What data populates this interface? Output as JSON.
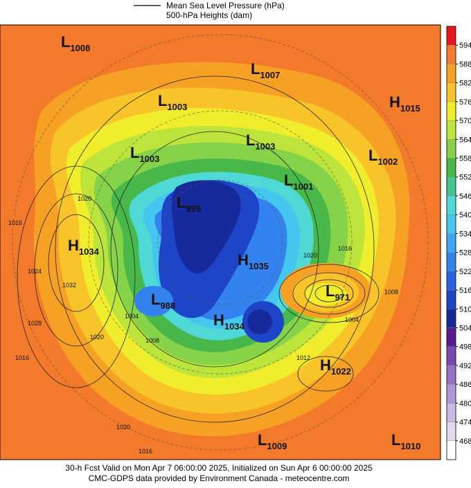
{
  "legend": {
    "line_label": "Mean Sea Level Pressure (hPa)",
    "fill_label": "500-hPa Heights (dam)"
  },
  "colorbar": {
    "levels": [
      468,
      474,
      480,
      486,
      492,
      498,
      504,
      510,
      516,
      522,
      528,
      534,
      540,
      546,
      552,
      558,
      564,
      570,
      576,
      582,
      588,
      594
    ],
    "colors": [
      "#ffffff",
      "#e4d8f0",
      "#cbb8e4",
      "#b096d6",
      "#9672c4",
      "#7a48b0",
      "#5a1a92",
      "#162a9c",
      "#1e44c8",
      "#2a62e4",
      "#3482f0",
      "#3ca6f4",
      "#44c6ee",
      "#4ed8d6",
      "#44c48e",
      "#48b84a",
      "#86d248",
      "#bce43a",
      "#f0ee2c",
      "#f8c42a",
      "#f6a024",
      "#f27a2a",
      "#e8141e"
    ]
  },
  "centers": [
    {
      "letter": "L",
      "value": 1008
    },
    {
      "letter": "L",
      "value": 1007
    },
    {
      "letter": "L",
      "value": 1003
    },
    {
      "letter": "H",
      "value": 1015
    },
    {
      "letter": "L",
      "value": 1003
    },
    {
      "letter": "L",
      "value": 1003
    },
    {
      "letter": "L",
      "value": 1002
    },
    {
      "letter": "L",
      "value": 1001
    },
    {
      "letter": "L",
      "value": 995
    },
    {
      "letter": "H",
      "value": 1034
    },
    {
      "letter": "H",
      "value": 1035
    },
    {
      "letter": "L",
      "value": 971
    },
    {
      "letter": "L",
      "value": 988
    },
    {
      "letter": "H",
      "value": 1034
    },
    {
      "letter": "H",
      "value": 1022
    },
    {
      "letter": "L",
      "value": 1009
    },
    {
      "letter": "L",
      "value": 1010
    }
  ],
  "contour_labels": [
    1020,
    1016,
    1024,
    1032,
    1028,
    1020,
    1016,
    1016,
    1020,
    1004,
    1008,
    1012,
    1004,
    1008,
    1020,
    1016
  ],
  "footer": {
    "line1": "30-h Fcst Valid on Mon Apr  7 06:00:00 2025, Initialized on Sun Apr  6 00:00:00 2025",
    "line2": "CMC-GDPS data provided by Environment Canada - meteocentre.com"
  }
}
